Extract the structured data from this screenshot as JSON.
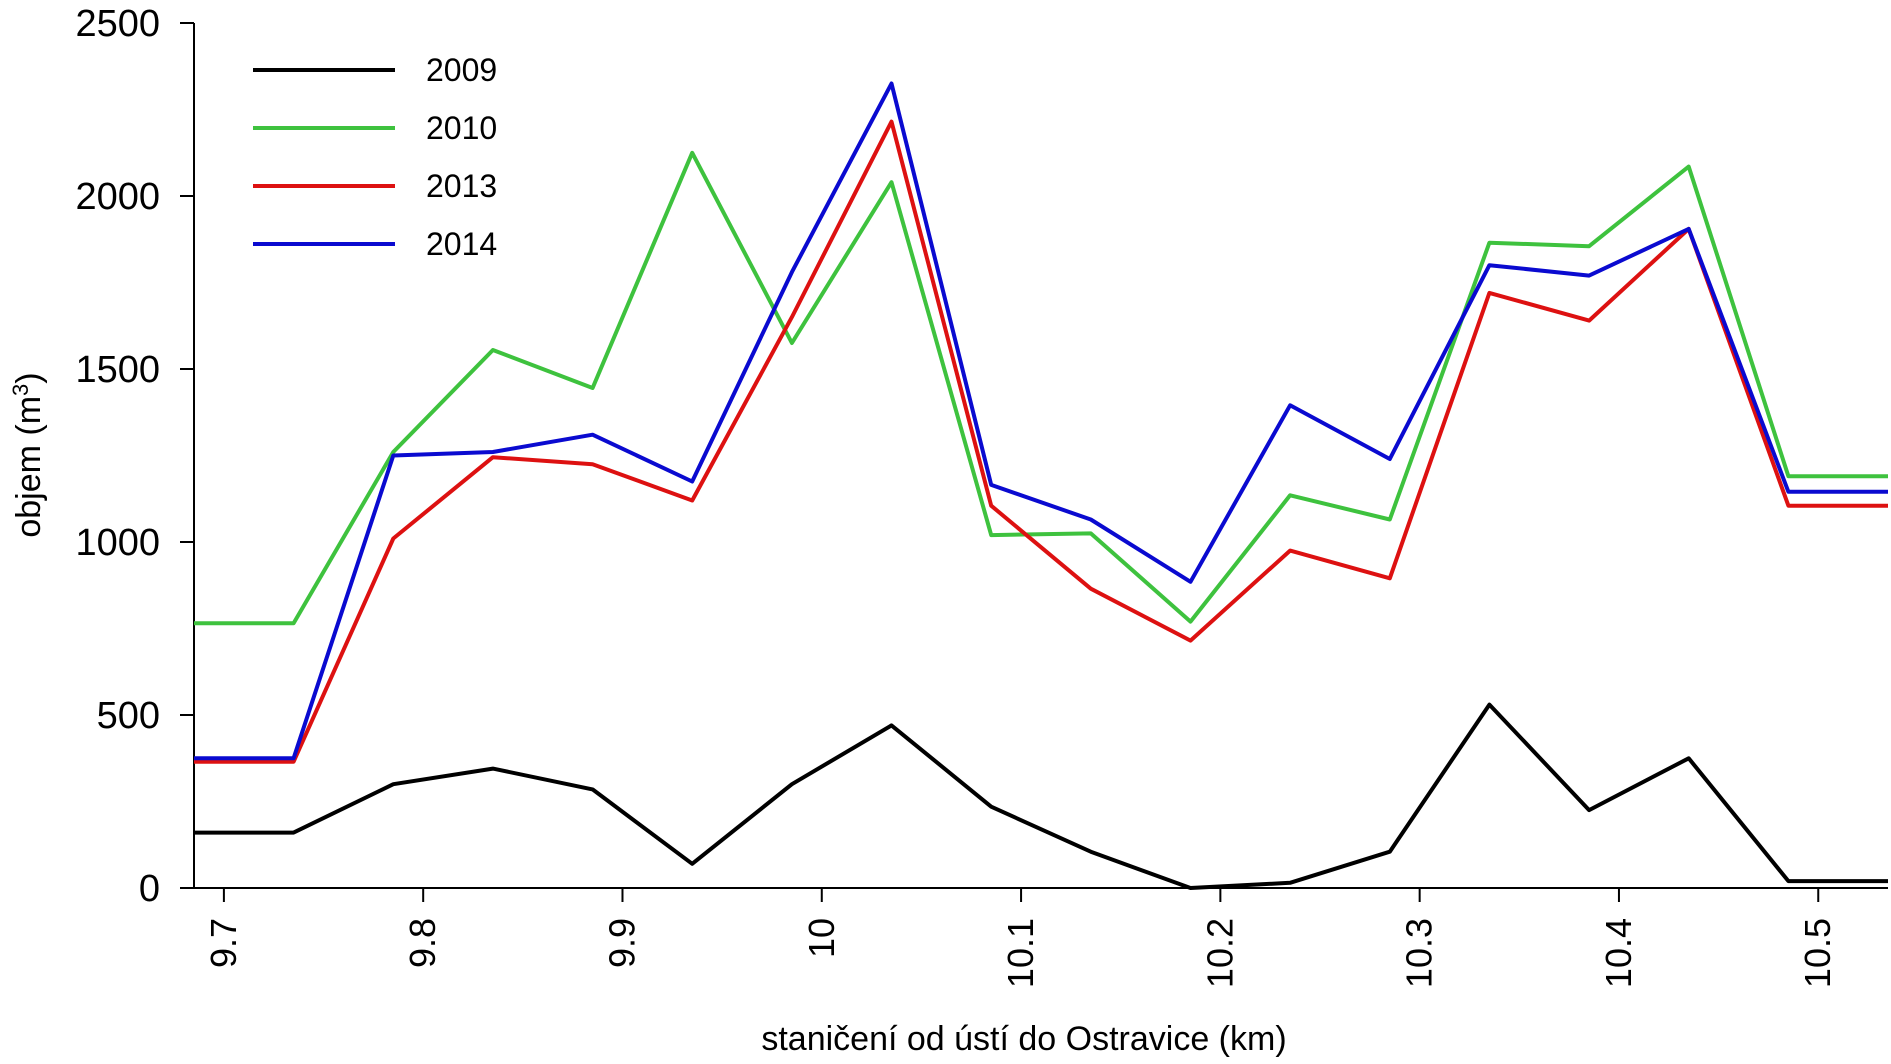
{
  "chart_data": {
    "type": "line",
    "title": "",
    "xlabel": "staničení od ústí do Ostravice (km)",
    "ylabel_main": "objem (m",
    "ylabel_sup": "3",
    "ylabel_close": ")",
    "xlim": [
      9.685,
      10.535
    ],
    "ylim": [
      0,
      2500
    ],
    "x_ticks": [
      9.7,
      9.8,
      9.9,
      10.0,
      10.1,
      10.2,
      10.3,
      10.4,
      10.5
    ],
    "x_tick_labels": [
      "9.7",
      "9.8",
      "9.9",
      "10",
      "10.1",
      "10.2",
      "10.3",
      "10.4",
      "10.5"
    ],
    "y_ticks": [
      0,
      500,
      1000,
      1500,
      2000,
      2500
    ],
    "y_tick_labels": [
      "0",
      "500",
      "1000",
      "1500",
      "2000",
      "2500"
    ],
    "grid": false,
    "legend_position": "top-left",
    "x": [
      9.685,
      9.735,
      9.785,
      9.835,
      9.885,
      9.935,
      9.985,
      10.035,
      10.085,
      10.135,
      10.185,
      10.235,
      10.285,
      10.335,
      10.385,
      10.435,
      10.485,
      10.535
    ],
    "series": [
      {
        "name": "2009",
        "color": "#000000",
        "values": [
          160,
          160,
          300,
          345,
          285,
          70,
          300,
          470,
          235,
          105,
          0,
          15,
          105,
          530,
          225,
          375,
          20,
          20
        ]
      },
      {
        "name": "2010",
        "color": "#3ec23e",
        "values": [
          765,
          765,
          1260,
          1555,
          1445,
          2125,
          1575,
          2040,
          1020,
          1025,
          770,
          1135,
          1065,
          1865,
          1855,
          2085,
          1190,
          1190
        ]
      },
      {
        "name": "2013",
        "color": "#dd1111",
        "values": [
          365,
          365,
          1010,
          1245,
          1225,
          1120,
          1650,
          2215,
          1105,
          865,
          715,
          975,
          895,
          1720,
          1640,
          1905,
          1105,
          1105
        ]
      },
      {
        "name": "2014",
        "color": "#0a0ad0",
        "values": [
          375,
          375,
          1250,
          1260,
          1310,
          1175,
          1780,
          2325,
          1165,
          1065,
          885,
          1395,
          1240,
          1800,
          1770,
          1905,
          1145,
          1145
        ]
      }
    ]
  }
}
